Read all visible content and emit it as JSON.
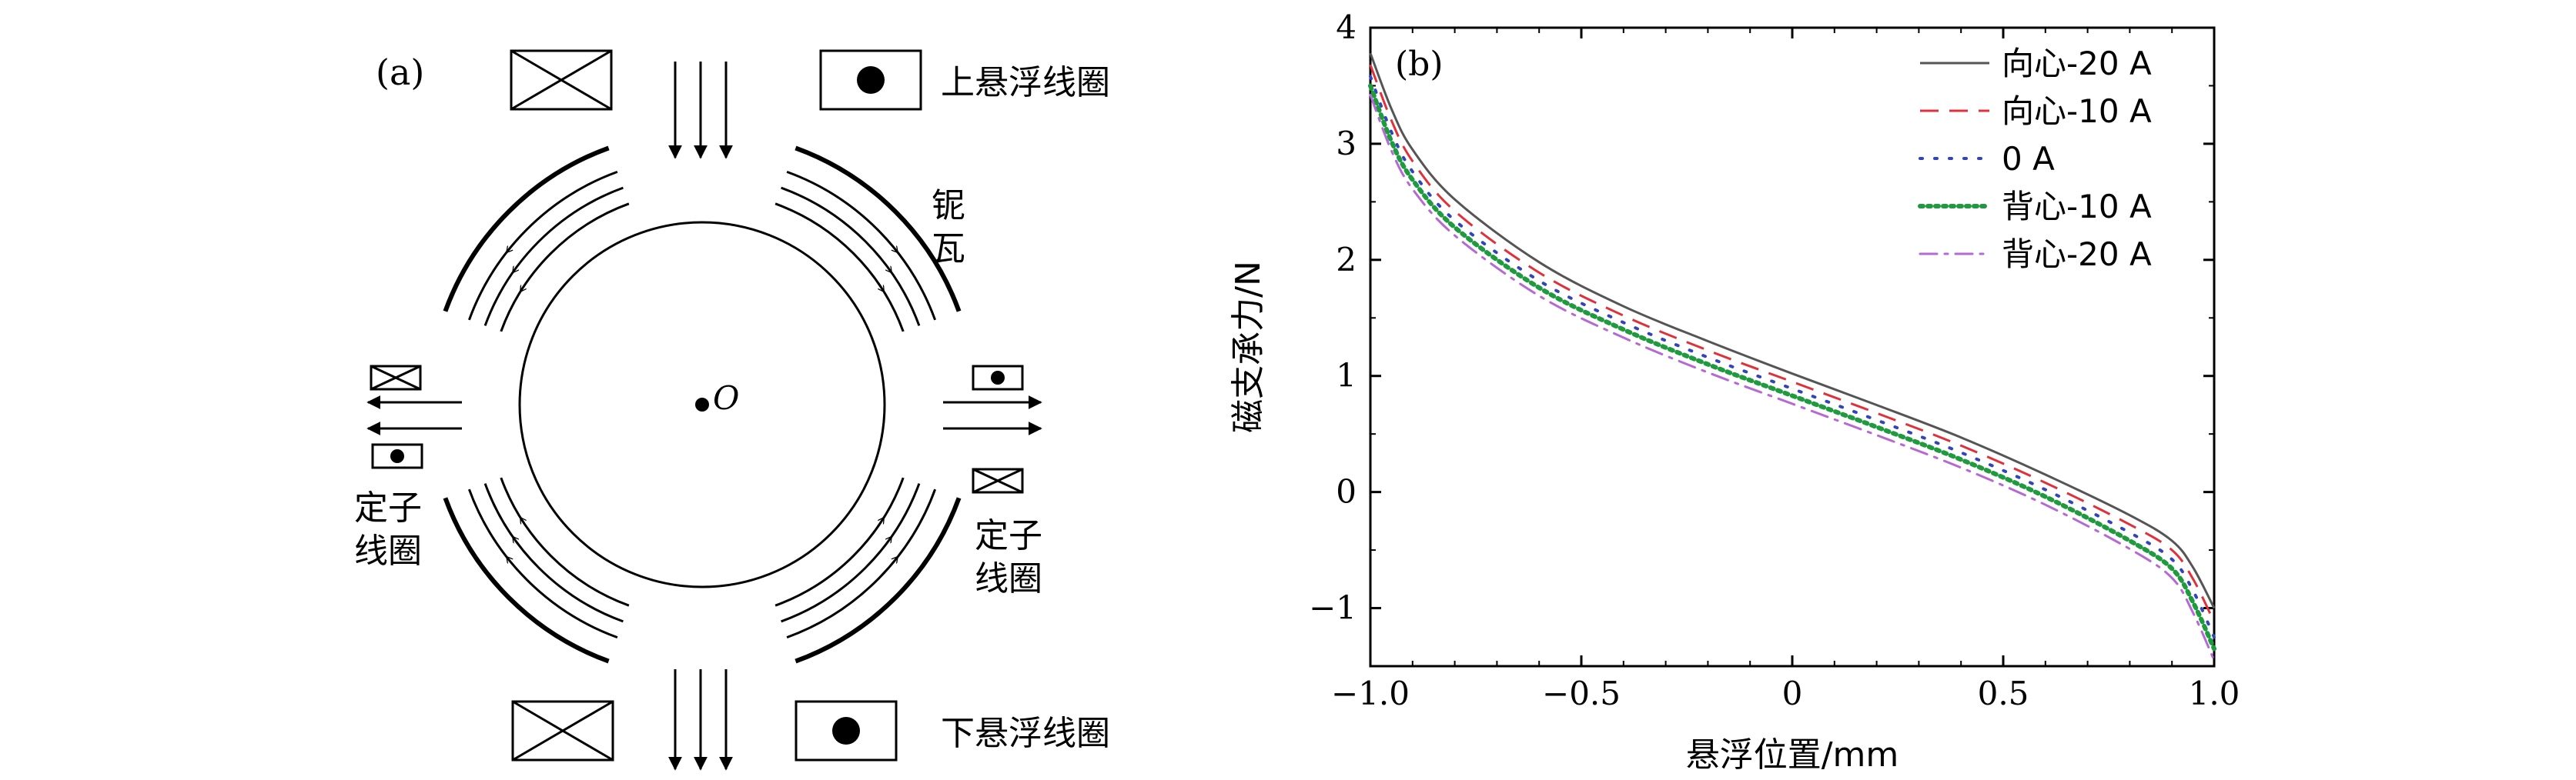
{
  "panel_a": {
    "label": "(a)",
    "center_label": "O",
    "upper_coil": "上悬浮线圈",
    "lower_coil": "下悬浮线圈",
    "magnet_line1": "铌",
    "magnet_line2": "瓦",
    "stator_left_line1": "定子",
    "stator_left_line2": "线圈",
    "stator_right_line1": "定子",
    "stator_right_line2": "线圈"
  },
  "chart_data": {
    "type": "line",
    "panel_label": "(b)",
    "xlabel": "悬浮位置/mm",
    "ylabel": "磁支承力/N",
    "xlim": [
      -1.0,
      1.0
    ],
    "ylim": [
      -1.5,
      4.0
    ],
    "xticks": [
      "−1.0",
      "−0.5",
      "0",
      "0.5",
      "1.0"
    ],
    "yticks": [
      "−1",
      "0",
      "1",
      "2",
      "3",
      "4"
    ],
    "x": [
      -1.0,
      -0.95,
      -0.9,
      -0.8,
      -0.6,
      -0.4,
      -0.2,
      0,
      0.2,
      0.4,
      0.6,
      0.8,
      0.9,
      0.95,
      1.0
    ],
    "series": [
      {
        "name": "向心-20 A",
        "color": "#555555",
        "dash": "solid",
        "values": [
          3.78,
          3.3,
          2.95,
          2.52,
          1.98,
          1.6,
          1.3,
          1.02,
          0.75,
          0.47,
          0.15,
          -0.2,
          -0.42,
          -0.65,
          -1.0
        ]
      },
      {
        "name": "向心-10 A",
        "color": "#e0313a",
        "dash": "dash",
        "values": [
          3.68,
          3.2,
          2.85,
          2.42,
          1.89,
          1.52,
          1.22,
          0.95,
          0.68,
          0.4,
          0.08,
          -0.28,
          -0.5,
          -0.75,
          -1.12
        ]
      },
      {
        "name": "0 A",
        "color": "#3344bb",
        "dash": "dot",
        "values": [
          3.58,
          3.1,
          2.76,
          2.34,
          1.82,
          1.46,
          1.16,
          0.89,
          0.62,
          0.34,
          0.02,
          -0.35,
          -0.58,
          -0.85,
          -1.25
        ]
      },
      {
        "name": "背心-10 A",
        "color": "#1f9a3f",
        "dash": "dense-dot",
        "values": [
          3.5,
          3.02,
          2.69,
          2.28,
          1.76,
          1.4,
          1.1,
          0.83,
          0.56,
          0.28,
          -0.04,
          -0.42,
          -0.66,
          -0.95,
          -1.35
        ]
      },
      {
        "name": "背心-20 A",
        "color": "#b569d4",
        "dash": "dashdot",
        "values": [
          3.42,
          2.94,
          2.61,
          2.21,
          1.69,
          1.33,
          1.03,
          0.76,
          0.49,
          0.21,
          -0.11,
          -0.49,
          -0.74,
          -1.04,
          -1.45
        ]
      }
    ],
    "legend_position": "top-right"
  }
}
